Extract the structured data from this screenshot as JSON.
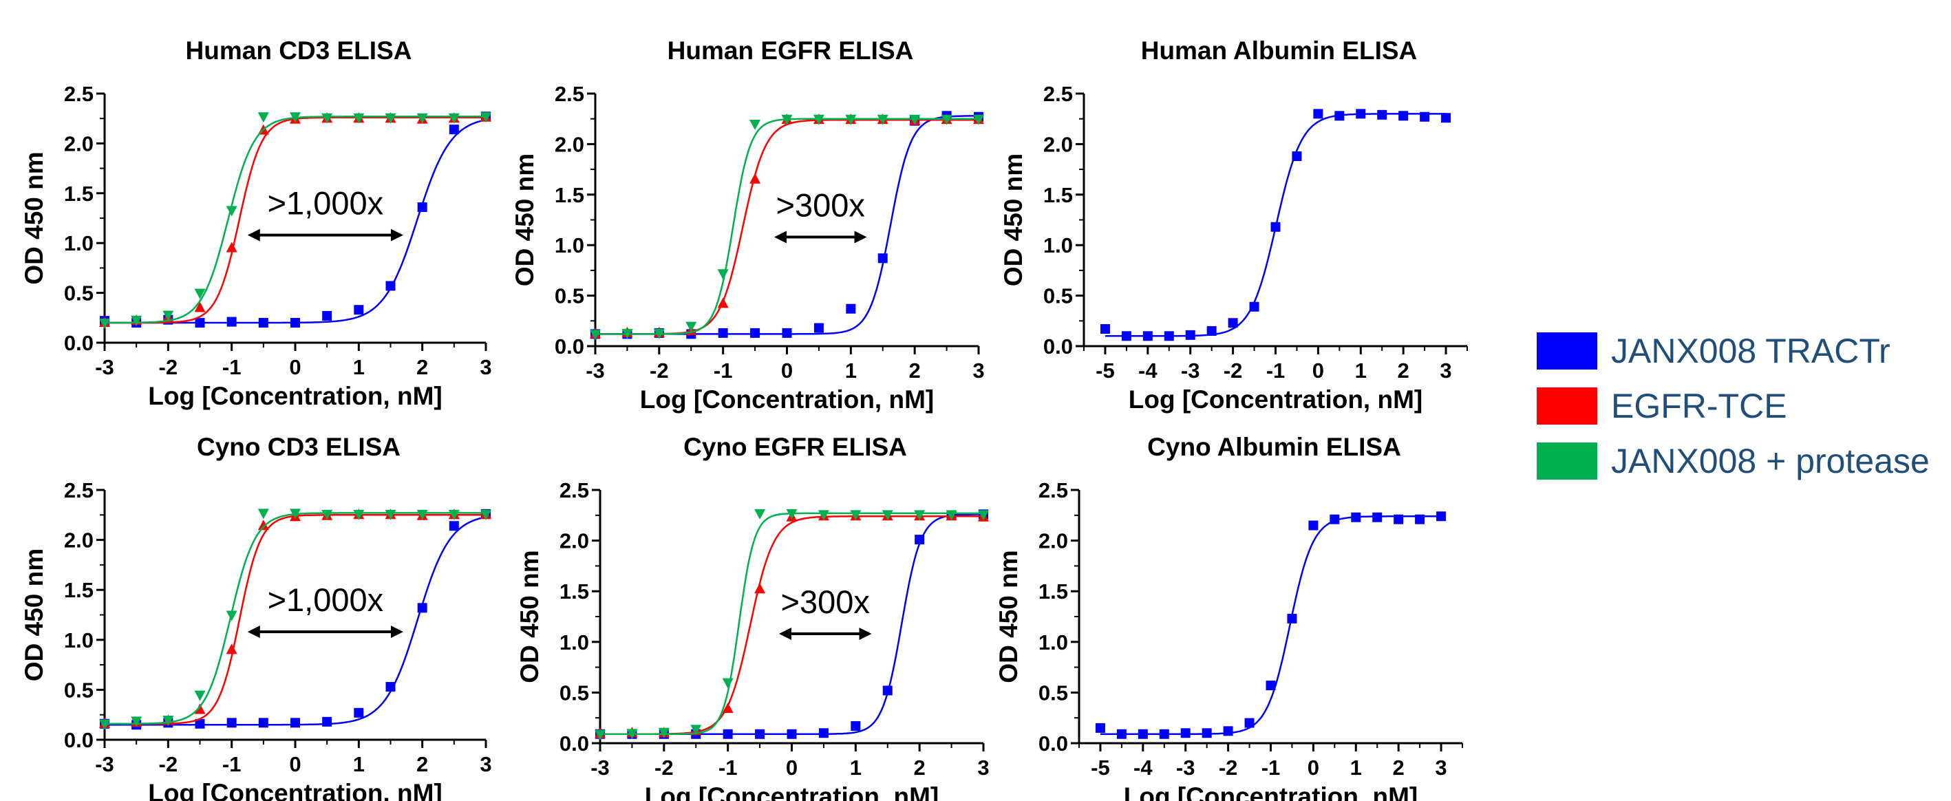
{
  "legend": [
    {
      "name": "JANX008 TRACTr",
      "color": "#0000ff"
    },
    {
      "name": "EGFR-TCE",
      "color": "#ff0000"
    },
    {
      "name": "JANX008 + protease",
      "color": "#00b050"
    }
  ],
  "chart_data": [
    {
      "type": "scatter",
      "title": "Human CD3 ELISA",
      "xlabel": "Log [Concentration, nM]",
      "ylabel": "OD 450 nm",
      "xlim": [
        -3,
        3
      ],
      "ylim": [
        0,
        2.5
      ],
      "xticks": [
        -3,
        -2,
        -1,
        0,
        1,
        2,
        3
      ],
      "yticks": [
        0.0,
        0.5,
        1.0,
        1.5,
        2.0,
        2.5
      ],
      "annotation": ">1,000x",
      "series": [
        {
          "name": "JANX008 TRACTr",
          "x": [
            -3,
            -2.5,
            -2,
            -1.5,
            -1,
            -0.5,
            0,
            0.5,
            1,
            1.5,
            2,
            2.5,
            3
          ],
          "y": [
            0.22,
            0.2,
            0.23,
            0.2,
            0.21,
            0.2,
            0.2,
            0.27,
            0.33,
            0.57,
            1.36,
            2.14,
            2.27
          ]
        },
        {
          "name": "EGFR-TCE",
          "x": [
            -3,
            -2.5,
            -2,
            -1.5,
            -1,
            -0.5,
            0,
            0.5,
            1,
            1.5,
            2,
            2.5,
            3
          ],
          "y": [
            0.2,
            0.22,
            0.25,
            0.35,
            0.95,
            2.13,
            2.24,
            2.25,
            2.25,
            2.25,
            2.24,
            2.25,
            2.26
          ]
        },
        {
          "name": "JANX008 + protease",
          "x": [
            -3,
            -2.5,
            -2,
            -1.5,
            -1,
            -0.5,
            0,
            0.5,
            1,
            1.5,
            2,
            2.5,
            3
          ],
          "y": [
            0.2,
            0.23,
            0.28,
            0.5,
            1.33,
            2.27,
            2.27,
            2.26,
            2.26,
            2.26,
            2.26,
            2.26,
            2.27
          ]
        }
      ]
    },
    {
      "type": "scatter",
      "title": "Human EGFR ELISA",
      "xlabel": "Log [Concentration, nM]",
      "ylabel": "OD 450 nm",
      "xlim": [
        -3,
        3
      ],
      "ylim": [
        0,
        2.5
      ],
      "xticks": [
        -3,
        -2,
        -1,
        0,
        1,
        2,
        3
      ],
      "yticks": [
        0.0,
        0.5,
        1.0,
        1.5,
        2.0,
        2.5
      ],
      "annotation": ">300x",
      "series": [
        {
          "name": "JANX008 TRACTr",
          "x": [
            -3,
            -2.5,
            -2,
            -1.5,
            -1,
            -0.5,
            0,
            0.5,
            1,
            1.5,
            2,
            2.5,
            3
          ],
          "y": [
            0.12,
            0.12,
            0.13,
            0.12,
            0.13,
            0.13,
            0.13,
            0.18,
            0.37,
            0.87,
            2.23,
            2.28,
            2.27
          ]
        },
        {
          "name": "EGFR-TCE",
          "x": [
            -3,
            -2.5,
            -2,
            -1.5,
            -1,
            -0.5,
            0,
            0.5,
            1,
            1.5,
            2,
            2.5,
            3
          ],
          "y": [
            0.12,
            0.13,
            0.13,
            0.15,
            0.42,
            1.65,
            2.24,
            2.24,
            2.24,
            2.24,
            2.23,
            2.24,
            2.24
          ]
        },
        {
          "name": "JANX008 + protease",
          "x": [
            -3,
            -2.5,
            -2,
            -1.5,
            -1,
            -0.5,
            0,
            0.5,
            1,
            1.5,
            2,
            2.5,
            3
          ],
          "y": [
            0.12,
            0.13,
            0.13,
            0.2,
            0.72,
            2.2,
            2.25,
            2.25,
            2.25,
            2.25,
            2.25,
            2.25,
            2.25
          ]
        }
      ]
    },
    {
      "type": "scatter",
      "title": "Human Albumin ELISA",
      "xlabel": "Log [Concentration, nM]",
      "ylabel": "OD 450 nm",
      "xlim": [
        -5.5,
        3.5
      ],
      "ylim": [
        0,
        2.5
      ],
      "xticks": [
        -5,
        -4,
        -3,
        -2,
        -1,
        0,
        1,
        2,
        3
      ],
      "yticks": [
        0.0,
        0.5,
        1.0,
        1.5,
        2.0,
        2.5
      ],
      "series": [
        {
          "name": "JANX008 TRACTr",
          "x": [
            -5,
            -4.5,
            -4,
            -3.5,
            -3,
            -2.5,
            -2,
            -1.5,
            -1,
            -0.5,
            0,
            0.5,
            1,
            1.5,
            2,
            2.5,
            3
          ],
          "y": [
            0.17,
            0.1,
            0.1,
            0.1,
            0.11,
            0.15,
            0.23,
            0.39,
            1.18,
            1.88,
            2.3,
            2.28,
            2.3,
            2.29,
            2.28,
            2.27,
            2.26
          ]
        }
      ]
    },
    {
      "type": "scatter",
      "title": "Cyno CD3 ELISA",
      "xlabel": "Log [Concentration, nM]",
      "ylabel": "OD 450 nm",
      "xlim": [
        -3,
        3
      ],
      "ylim": [
        0,
        2.5
      ],
      "xticks": [
        -3,
        -2,
        -1,
        0,
        1,
        2,
        3
      ],
      "yticks": [
        0.0,
        0.5,
        1.0,
        1.5,
        2.0,
        2.5
      ],
      "annotation": ">1,000x",
      "series": [
        {
          "name": "JANX008 TRACTr",
          "x": [
            -3,
            -2.5,
            -2,
            -1.5,
            -1,
            -0.5,
            0,
            0.5,
            1,
            1.5,
            2,
            2.5,
            3
          ],
          "y": [
            0.16,
            0.15,
            0.17,
            0.16,
            0.17,
            0.17,
            0.17,
            0.18,
            0.27,
            0.53,
            1.32,
            2.14,
            2.26
          ]
        },
        {
          "name": "EGFR-TCE",
          "x": [
            -3,
            -2.5,
            -2,
            -1.5,
            -1,
            -0.5,
            0,
            0.5,
            1,
            1.5,
            2,
            2.5,
            3
          ],
          "y": [
            0.16,
            0.17,
            0.19,
            0.3,
            0.9,
            2.14,
            2.23,
            2.24,
            2.25,
            2.25,
            2.24,
            2.25,
            2.25
          ]
        },
        {
          "name": "JANX008 + protease",
          "x": [
            -3,
            -2.5,
            -2,
            -1.5,
            -1,
            -0.5,
            0,
            0.5,
            1,
            1.5,
            2,
            2.5,
            3
          ],
          "y": [
            0.16,
            0.19,
            0.2,
            0.45,
            1.25,
            2.27,
            2.27,
            2.26,
            2.26,
            2.26,
            2.26,
            2.26,
            2.26
          ]
        }
      ]
    },
    {
      "type": "scatter",
      "title": "Cyno EGFR ELISA",
      "xlabel": "Log [Concentration, nM]",
      "ylabel": "OD 450 nm",
      "xlim": [
        -3,
        3
      ],
      "ylim": [
        0,
        2.5
      ],
      "xticks": [
        -3,
        -2,
        -1,
        0,
        1,
        2,
        3
      ],
      "yticks": [
        0.0,
        0.5,
        1.0,
        1.5,
        2.0,
        2.5
      ],
      "annotation": ">300x",
      "series": [
        {
          "name": "JANX008 TRACTr",
          "x": [
            -3,
            -2.5,
            -2,
            -1.5,
            -1,
            -0.5,
            0,
            0.5,
            1,
            1.5,
            2,
            2.5,
            3
          ],
          "y": [
            0.09,
            0.09,
            0.09,
            0.09,
            0.09,
            0.09,
            0.09,
            0.1,
            0.17,
            0.52,
            2.01,
            2.25,
            2.26
          ]
        },
        {
          "name": "EGFR-TCE",
          "x": [
            -3,
            -2.5,
            -2,
            -1.5,
            -1,
            -0.5,
            0,
            0.5,
            1,
            1.5,
            2,
            2.5,
            3
          ],
          "y": [
            0.09,
            0.1,
            0.1,
            0.12,
            0.34,
            1.52,
            2.23,
            2.24,
            2.24,
            2.24,
            2.24,
            2.24,
            2.23
          ]
        },
        {
          "name": "JANX008 + protease",
          "x": [
            -3,
            -2.5,
            -2,
            -1.5,
            -1,
            -0.5,
            0,
            0.5,
            1,
            1.5,
            2,
            2.5,
            3
          ],
          "y": [
            0.09,
            0.1,
            0.11,
            0.14,
            0.6,
            2.27,
            2.27,
            2.26,
            2.26,
            2.26,
            2.26,
            2.26,
            2.26
          ]
        }
      ]
    },
    {
      "type": "scatter",
      "title": "Cyno Albumin ELISA",
      "xlabel": "Log [Concentration, nM]",
      "ylabel": "OD 450 nm",
      "xlim": [
        -5.5,
        3.5
      ],
      "ylim": [
        0,
        2.5
      ],
      "xticks": [
        -5,
        -4,
        -3,
        -2,
        -1,
        0,
        1,
        2,
        3
      ],
      "yticks": [
        0.0,
        0.5,
        1.0,
        1.5,
        2.0,
        2.5
      ],
      "series": [
        {
          "name": "JANX008 TRACTr",
          "x": [
            -5,
            -4.5,
            -4,
            -3.5,
            -3,
            -2.5,
            -2,
            -1.5,
            -1,
            -0.5,
            0,
            0.5,
            1,
            1.5,
            2,
            2.5,
            3
          ],
          "y": [
            0.15,
            0.09,
            0.09,
            0.09,
            0.1,
            0.1,
            0.12,
            0.2,
            0.57,
            1.23,
            2.15,
            2.21,
            2.23,
            2.23,
            2.21,
            2.21,
            2.24
          ]
        }
      ]
    }
  ]
}
